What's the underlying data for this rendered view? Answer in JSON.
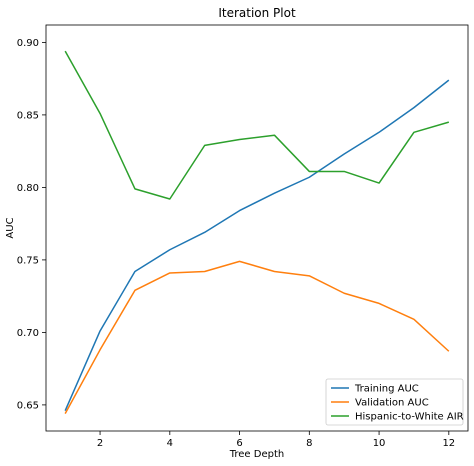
{
  "chart_data": {
    "type": "line",
    "title": "Iteration Plot",
    "xlabel": "Tree Depth",
    "ylabel": "AUC",
    "xlim": [
      0.45,
      12.55
    ],
    "ylim": [
      0.632,
      0.912
    ],
    "xticks": [
      2,
      4,
      6,
      8,
      10,
      12
    ],
    "yticks": [
      0.65,
      0.7,
      0.75,
      0.8,
      0.85,
      0.9
    ],
    "ytick_labels": [
      "0.65",
      "0.70",
      "0.75",
      "0.80",
      "0.85",
      "0.90"
    ],
    "grid": false,
    "legend_position": "lower-right",
    "x": [
      1,
      2,
      3,
      4,
      5,
      6,
      7,
      8,
      9,
      10,
      11,
      12
    ],
    "series": [
      {
        "name": "Training AUC",
        "color": "#1f77b4",
        "values": [
          0.646,
          0.701,
          0.742,
          0.757,
          0.769,
          0.784,
          0.796,
          0.807,
          0.823,
          0.838,
          0.855,
          0.874
        ]
      },
      {
        "name": "Validation AUC",
        "color": "#ff7f0e",
        "values": [
          0.644,
          0.688,
          0.729,
          0.741,
          0.742,
          0.749,
          0.742,
          0.739,
          0.727,
          0.72,
          0.709,
          0.687
        ]
      },
      {
        "name": "Hispanic-to-White AIR",
        "color": "#2ca02c",
        "values": [
          0.894,
          0.851,
          0.799,
          0.792,
          0.829,
          0.833,
          0.836,
          0.811,
          0.811,
          0.803,
          0.838,
          0.845
        ]
      }
    ]
  }
}
